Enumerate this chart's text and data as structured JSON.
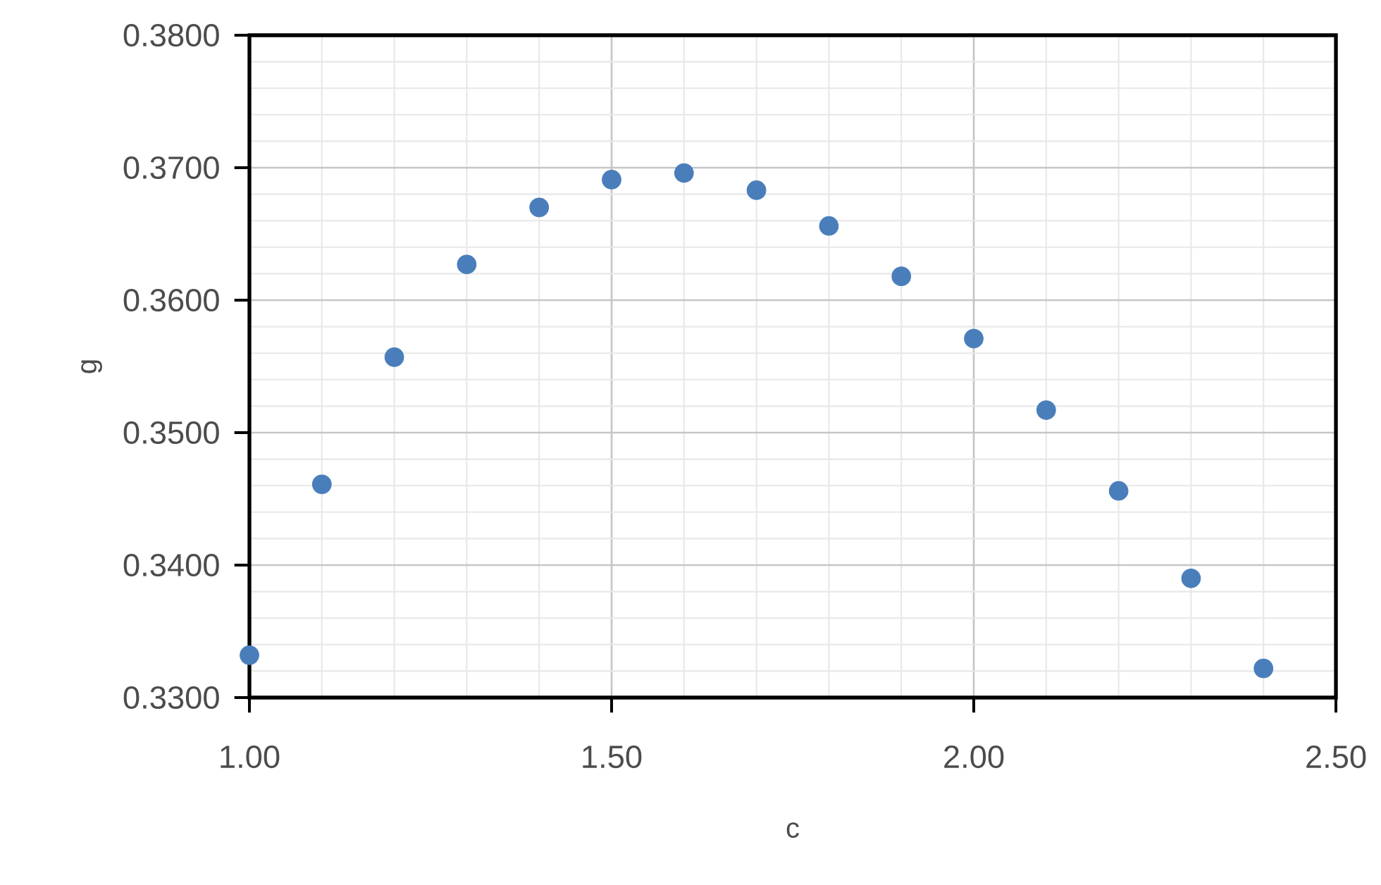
{
  "chart_data": {
    "type": "scatter",
    "xlabel": "c",
    "ylabel": "g",
    "x": [
      1.0,
      1.1,
      1.2,
      1.3,
      1.4,
      1.5,
      1.6,
      1.7,
      1.8,
      1.9,
      2.0,
      2.1,
      2.2,
      2.3,
      2.4
    ],
    "series": [
      {
        "color": "#4a7ebb",
        "values": [
          0.3332,
          0.3461,
          0.3557,
          0.3627,
          0.367,
          0.3691,
          0.3696,
          0.3683,
          0.3656,
          0.3618,
          0.3571,
          0.3517,
          0.3456,
          0.339,
          0.3322
        ]
      }
    ],
    "xlim": [
      1.0,
      2.5
    ],
    "ylim": [
      0.33,
      0.38
    ],
    "xticks": [
      {
        "value": 1.0,
        "label": "1.00"
      },
      {
        "value": 1.5,
        "label": "1.50"
      },
      {
        "value": 2.0,
        "label": "2.00"
      },
      {
        "value": 2.5,
        "label": "2.50"
      }
    ],
    "yticks": [
      {
        "value": 0.33,
        "label": "0.3300"
      },
      {
        "value": 0.34,
        "label": "0.3400"
      },
      {
        "value": 0.35,
        "label": "0.3500"
      },
      {
        "value": 0.36,
        "label": "0.3600"
      },
      {
        "value": 0.37,
        "label": "0.3700"
      },
      {
        "value": 0.38,
        "label": "0.3800"
      }
    ],
    "grid": true,
    "marker": "circle"
  }
}
